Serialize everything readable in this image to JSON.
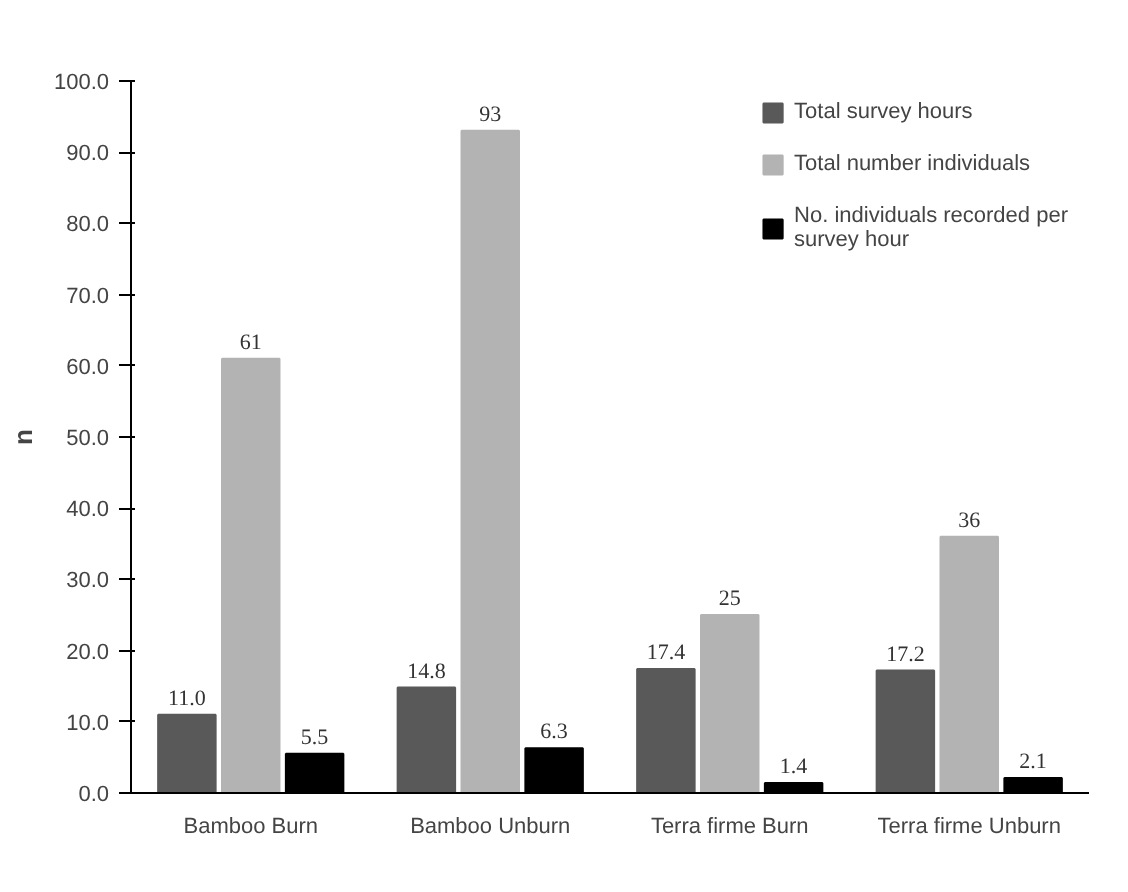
{
  "chart_data": {
    "type": "bar",
    "ylabel": "n",
    "categories": [
      "Bamboo Burn",
      "Bamboo Unburn",
      "Terra firme Burn",
      "Terra firme Unburn"
    ],
    "series": [
      {
        "name": "Total survey hours",
        "color": "#595959",
        "values": [
          11.0,
          14.8,
          17.4,
          17.2
        ],
        "value_labels": [
          "11.0",
          "14.8",
          "17.4",
          "17.2"
        ]
      },
      {
        "name": "Total number individuals",
        "color": "#b3b3b3",
        "values": [
          61,
          93,
          25,
          36
        ],
        "value_labels": [
          "61",
          "93",
          "25",
          "36"
        ]
      },
      {
        "name": "No. individuals recorded per survey hour",
        "color": "#000000",
        "values": [
          5.5,
          6.3,
          1.4,
          2.1
        ],
        "value_labels": [
          "5.5",
          "6.3",
          "1.4",
          "2.1"
        ]
      }
    ],
    "ylim": [
      0,
      100
    ],
    "yticks": [
      {
        "value": 0,
        "label": "0.0"
      },
      {
        "value": 10,
        "label": "10.0"
      },
      {
        "value": 20,
        "label": "20.0"
      },
      {
        "value": 30,
        "label": "30.0"
      },
      {
        "value": 40,
        "label": "40.0"
      },
      {
        "value": 50,
        "label": "50.0"
      },
      {
        "value": 60,
        "label": "60.0"
      },
      {
        "value": 70,
        "label": "70.0"
      },
      {
        "value": 80,
        "label": "80.0"
      },
      {
        "value": 90,
        "label": "90.0"
      },
      {
        "value": 100,
        "label": "100.0"
      }
    ],
    "grid": false,
    "legend": "top right"
  }
}
